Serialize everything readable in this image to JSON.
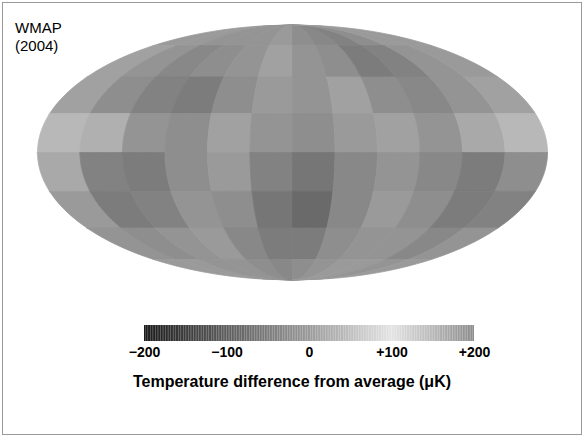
{
  "chart_data": {
    "type": "heatmap",
    "title": "WMAP (2004)",
    "lon_bins": [
      -180,
      -150,
      -120,
      -90,
      -60,
      -30,
      0,
      30,
      60,
      90,
      120,
      150,
      180
    ],
    "lat_bins": [
      90,
      67.5,
      45,
      22.5,
      0,
      -22.5,
      -45,
      -67.5,
      -90
    ],
    "cells": [
      [
        0,
        0,
        -10,
        -10,
        -10,
        0,
        -20,
        -30,
        -40,
        -20,
        0,
        0
      ],
      [
        10,
        -10,
        -30,
        -20,
        -10,
        10,
        -10,
        -20,
        -50,
        -40,
        -10,
        0
      ],
      [
        10,
        -20,
        -40,
        -50,
        -20,
        0,
        -10,
        10,
        -20,
        -30,
        -10,
        10
      ],
      [
        40,
        30,
        -10,
        -20,
        10,
        -10,
        -20,
        0,
        10,
        -10,
        20,
        40
      ],
      [
        20,
        -40,
        -50,
        -20,
        0,
        -40,
        -60,
        -30,
        -10,
        -30,
        -50,
        -20
      ],
      [
        0,
        -50,
        -40,
        -10,
        -20,
        -60,
        -80,
        -30,
        0,
        -20,
        -50,
        -40
      ],
      [
        -10,
        -20,
        -10,
        0,
        -30,
        -50,
        -50,
        -20,
        -10,
        -10,
        -30,
        -10
      ],
      [
        0,
        0,
        -10,
        -10,
        -20,
        -30,
        -20,
        -10,
        0,
        0,
        -10,
        0
      ]
    ],
    "colorbar": {
      "label": "Temperature difference from average (μK)",
      "lim": [
        -200,
        200
      ],
      "ticks": [
        {
          "value": -200,
          "label": "−200"
        },
        {
          "value": -100,
          "label": "−100"
        },
        0,
        {
          "value": 100,
          "label": "+100"
        },
        {
          "value": 200,
          "label": "+200"
        }
      ]
    }
  }
}
